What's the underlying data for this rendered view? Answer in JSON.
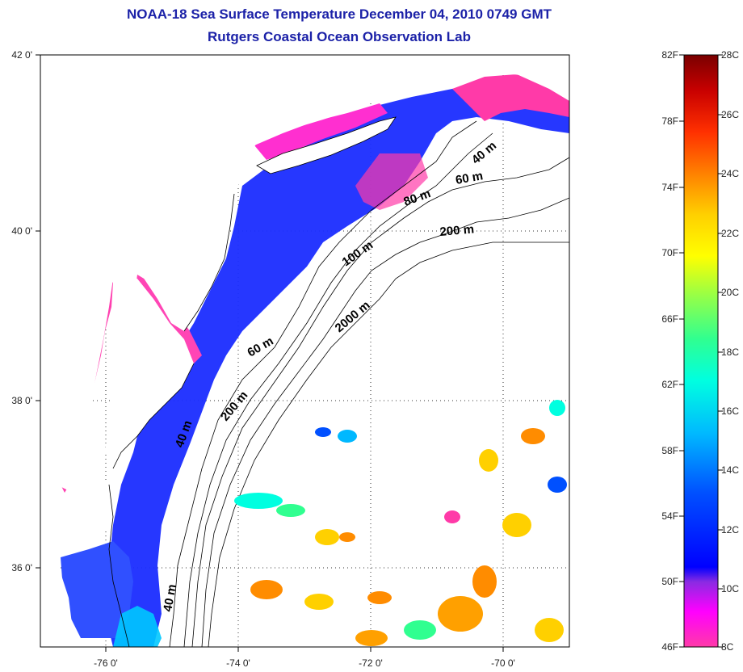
{
  "header": {
    "title_line1": "NOAA-18 Sea Surface Temperature December 04, 2010 0749 GMT",
    "title_line2": "Rutgers Coastal Ocean Observation Lab"
  },
  "axes": {
    "y_ticks": [
      "42 0'",
      "40 0'",
      "38 0'",
      "36 0'"
    ],
    "x_ticks": [
      "-76 0'",
      "-74 0'",
      "-72 0'",
      "-70 0'"
    ]
  },
  "isobaths": [
    "40 m",
    "60 m",
    "80 m",
    "200 m",
    "100 m",
    "2000 m",
    "60 m",
    "200 m",
    "40 m",
    "40 m"
  ],
  "colorbar": {
    "f_labels": [
      "82F",
      "78F",
      "74F",
      "70F",
      "66F",
      "62F",
      "58F",
      "54F",
      "50F",
      "46F"
    ],
    "c_labels": [
      "28C",
      "26C",
      "24C",
      "22C",
      "20C",
      "18C",
      "16C",
      "14C",
      "12C",
      "10C",
      "8C"
    ],
    "colors": [
      "#7a0000",
      "#c80000",
      "#ff3000",
      "#ff8c00",
      "#ffd000",
      "#ffff00",
      "#a0ff40",
      "#30ff90",
      "#00ffe0",
      "#00b8ff",
      "#0050ff",
      "#0000ff",
      "#8a2be2",
      "#ff00ff",
      "#ff3aa8"
    ]
  }
}
